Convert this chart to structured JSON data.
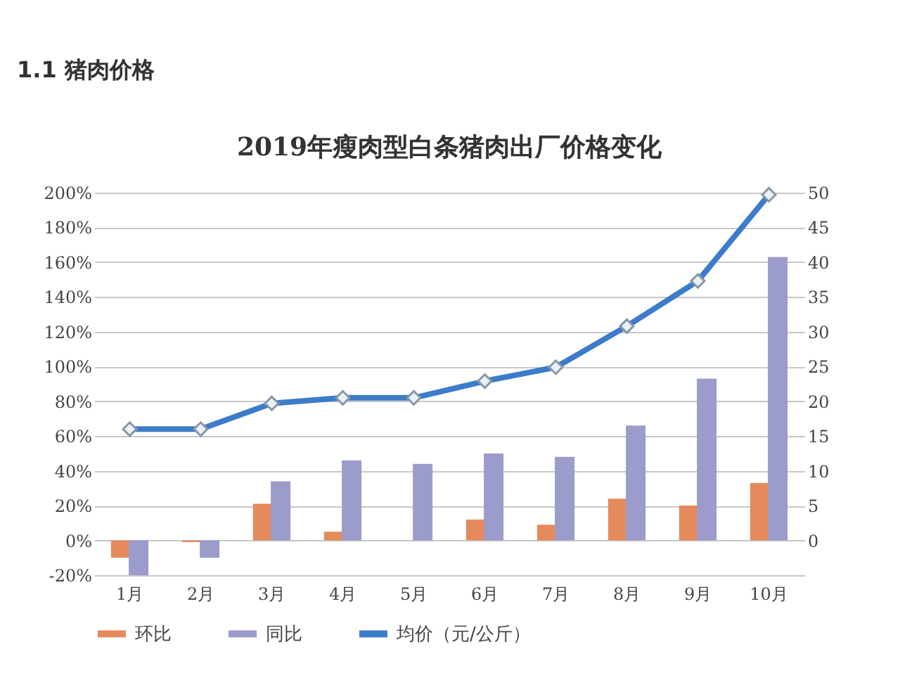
{
  "chart_data": {
    "type": "bar",
    "title": "2019年瘦肉型白条猪肉出厂价格变化",
    "annotations": [
      "1.1 猪肉价格"
    ],
    "categories": [
      "1月",
      "2月",
      "3月",
      "4月",
      "5月",
      "6月",
      "7月",
      "8月",
      "9月",
      "10月"
    ],
    "series": [
      {
        "name": "环比",
        "color": "#e58a5c",
        "values": [
          -10,
          -1,
          21,
          5,
          null,
          12,
          9,
          24,
          20,
          33
        ]
      },
      {
        "name": "同比",
        "color": "#9b9ccb",
        "values": [
          -20,
          -10,
          34,
          46,
          44,
          50,
          48,
          66,
          93,
          163
        ]
      },
      {
        "name": "均价（元/公斤）",
        "type": "line",
        "axis": "y2",
        "color": "#3d7cc9",
        "marker": "diamond",
        "line_style": "solid",
        "values": [
          16,
          16,
          19.7,
          20.5,
          20.5,
          22.9,
          24.9,
          30.8,
          37.3,
          49.7
        ]
      }
    ],
    "ylim": [
      -20,
      200
    ],
    "yticks": [
      {
        "value": -20,
        "label": "-20%"
      },
      {
        "value": 0,
        "label": "0%"
      },
      {
        "value": 20,
        "label": "20%"
      },
      {
        "value": 40,
        "label": "40%"
      },
      {
        "value": 60,
        "label": "60%"
      },
      {
        "value": 80,
        "label": "80%"
      },
      {
        "value": 100,
        "label": "100%"
      },
      {
        "value": 120,
        "label": "120%"
      },
      {
        "value": 140,
        "label": "140%"
      },
      {
        "value": 160,
        "label": "160%"
      },
      {
        "value": 180,
        "label": "180%"
      },
      {
        "value": 200,
        "label": "200%"
      }
    ],
    "y2lim": [
      -5,
      50
    ],
    "y2ticks": [
      0,
      5,
      10,
      15,
      20,
      25,
      30,
      35,
      40,
      45,
      50
    ],
    "grid": "y",
    "legend": "bottom"
  }
}
